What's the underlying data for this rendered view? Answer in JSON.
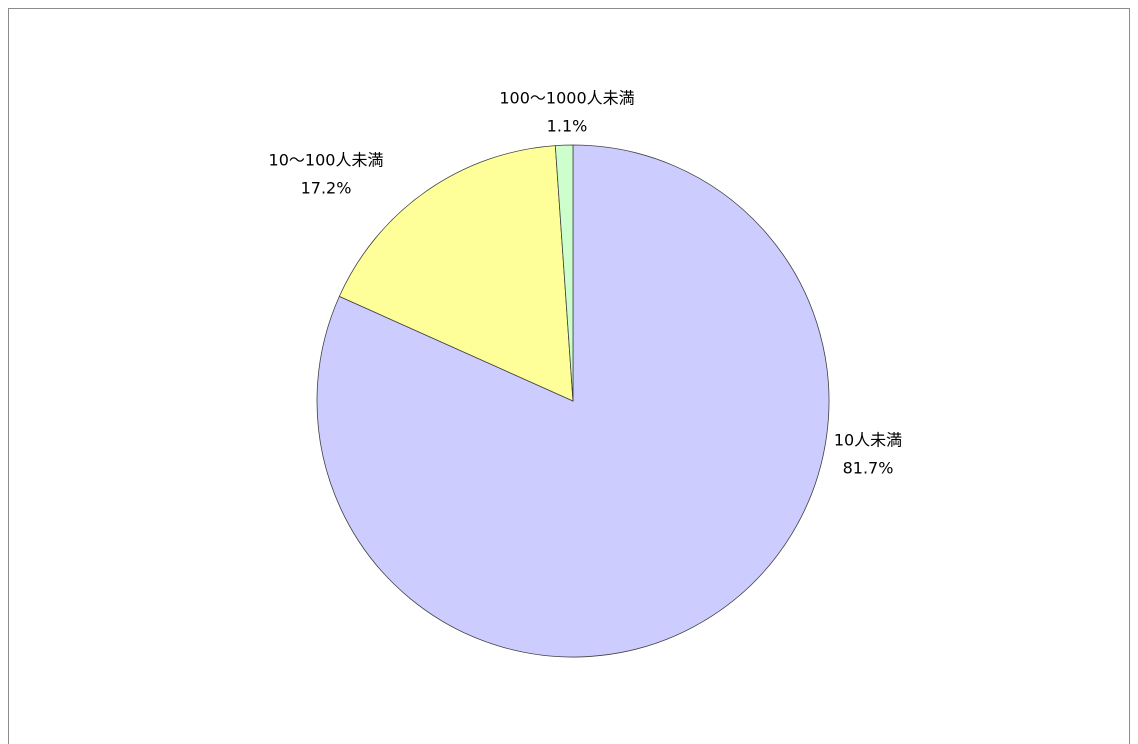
{
  "chart_data": {
    "type": "pie",
    "categories": [
      "10人未満",
      "10〜100人未満",
      "100〜1000人未満"
    ],
    "values": [
      81.7,
      17.2,
      1.1
    ],
    "value_labels": [
      "81.7%",
      "17.2%",
      "1.1%"
    ],
    "colors": [
      "#ccccff",
      "#ffff99",
      "#ccffcc"
    ]
  }
}
